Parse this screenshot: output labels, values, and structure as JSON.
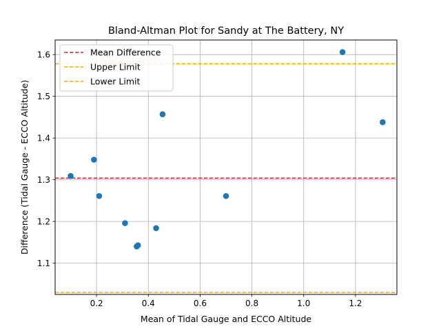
{
  "chart_data": {
    "type": "scatter",
    "title": "Bland-Altman Plot for Sandy at The Battery, NY",
    "xlabel": "Mean of Tidal Gauge and ECCO Altitude",
    "ylabel": "Difference (Tidal Gauge - ECCO Altitude)",
    "xlim": [
      0.04,
      1.36
    ],
    "ylim": [
      1.025,
      1.635
    ],
    "xticks": [
      0.2,
      0.4,
      0.6,
      0.8,
      1.0,
      1.2
    ],
    "xtick_labels": [
      "0.2",
      "0.4",
      "0.6",
      "0.8",
      "1.0",
      "1.2"
    ],
    "yticks": [
      1.1,
      1.2,
      1.3,
      1.4,
      1.5,
      1.6
    ],
    "ytick_labels": [
      "1.1",
      "1.2",
      "1.3",
      "1.4",
      "1.5",
      "1.6"
    ],
    "grid": true,
    "legend_position": "top-left",
    "point_color": "#1f77b4",
    "points": [
      {
        "x": 0.1,
        "y": 1.309
      },
      {
        "x": 0.19,
        "y": 1.348
      },
      {
        "x": 0.21,
        "y": 1.261
      },
      {
        "x": 0.31,
        "y": 1.196
      },
      {
        "x": 0.355,
        "y": 1.14
      },
      {
        "x": 0.36,
        "y": 1.143
      },
      {
        "x": 0.43,
        "y": 1.184
      },
      {
        "x": 0.455,
        "y": 1.457
      },
      {
        "x": 0.7,
        "y": 1.261
      },
      {
        "x": 1.15,
        "y": 1.606
      },
      {
        "x": 1.305,
        "y": 1.438
      }
    ],
    "lines": [
      {
        "name": "Mean Difference",
        "y": 1.304,
        "color": "#d62728"
      },
      {
        "name": "Upper Limit",
        "y": 1.578,
        "color": "#ffa500"
      },
      {
        "name": "Lower Limit",
        "y": 1.03,
        "color": "#ffa500"
      }
    ]
  }
}
